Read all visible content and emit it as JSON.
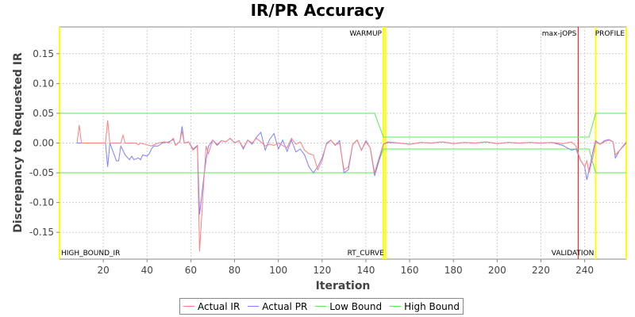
{
  "chart_data": {
    "type": "line",
    "title": "IR/PR Accuracy",
    "xlabel": "Iteration",
    "ylabel": "Discrepancy to Requested IR",
    "xlim": [
      0,
      259
    ],
    "ylim": [
      -0.195,
      0.195
    ],
    "xticks": [
      20,
      40,
      60,
      80,
      100,
      120,
      140,
      160,
      180,
      200,
      220,
      240
    ],
    "yticks": [
      -0.15,
      -0.1,
      -0.05,
      0.0,
      0.05,
      0.1,
      0.15
    ],
    "grid": true,
    "legend_position": "bottom",
    "background": "#ffffff",
    "series": [
      {
        "name": "Actual IR",
        "color": "#ff7f7f",
        "points": [
          [
            8,
            0.0
          ],
          [
            9,
            0.03
          ],
          [
            10,
            0.0
          ],
          [
            21,
            0.0
          ],
          [
            22,
            0.038
          ],
          [
            23,
            0.0
          ],
          [
            28,
            0.0
          ],
          [
            29,
            0.013
          ],
          [
            30,
            0.0
          ],
          [
            35,
            0.0
          ],
          [
            36,
            -0.003
          ],
          [
            37,
            0.0
          ],
          [
            40,
            -0.003
          ],
          [
            42,
            -0.005
          ],
          [
            45,
            0.0
          ],
          [
            48,
            0.002
          ],
          [
            50,
            0.0
          ],
          [
            52,
            0.008
          ],
          [
            53,
            -0.004
          ],
          [
            55,
            0.003
          ],
          [
            56,
            0.02
          ],
          [
            57,
            0.0
          ],
          [
            59,
            0.002
          ],
          [
            61,
            -0.012
          ],
          [
            63,
            -0.005
          ],
          [
            64,
            -0.182
          ],
          [
            66,
            -0.06
          ],
          [
            67,
            -0.005
          ],
          [
            68,
            -0.018
          ],
          [
            70,
            0.005
          ],
          [
            72,
            -0.002
          ],
          [
            74,
            0.004
          ],
          [
            76,
            0.002
          ],
          [
            78,
            0.008
          ],
          [
            80,
            0.0
          ],
          [
            82,
            0.004
          ],
          [
            84,
            -0.008
          ],
          [
            86,
            0.005
          ],
          [
            88,
            0.0
          ],
          [
            90,
            0.008
          ],
          [
            92,
            0.002
          ],
          [
            94,
            -0.005
          ],
          [
            96,
            -0.002
          ],
          [
            98,
            -0.004
          ],
          [
            100,
            0.0
          ],
          [
            102,
            -0.004
          ],
          [
            104,
            -0.008
          ],
          [
            106,
            0.008
          ],
          [
            108,
            -0.002
          ],
          [
            110,
            0.002
          ],
          [
            112,
            -0.012
          ],
          [
            114,
            -0.018
          ],
          [
            116,
            -0.02
          ],
          [
            118,
            -0.045
          ],
          [
            120,
            -0.03
          ],
          [
            122,
            0.0
          ],
          [
            124,
            0.005
          ],
          [
            126,
            -0.003
          ],
          [
            128,
            0.0
          ],
          [
            130,
            -0.045
          ],
          [
            132,
            -0.04
          ],
          [
            134,
            -0.002
          ],
          [
            136,
            0.005
          ],
          [
            138,
            -0.012
          ],
          [
            140,
            0.002
          ],
          [
            142,
            -0.008
          ],
          [
            144,
            -0.05
          ],
          [
            146,
            -0.025
          ],
          [
            148,
            -0.002
          ],
          [
            150,
            0.002
          ],
          [
            155,
            0.0
          ],
          [
            160,
            -0.002
          ],
          [
            165,
            0.001
          ],
          [
            170,
            0.0
          ],
          [
            175,
            0.002
          ],
          [
            180,
            -0.001
          ],
          [
            185,
            0.001
          ],
          [
            190,
            0.0
          ],
          [
            195,
            0.002
          ],
          [
            200,
            -0.001
          ],
          [
            205,
            0.001
          ],
          [
            210,
            0.0
          ],
          [
            215,
            0.001
          ],
          [
            220,
            0.0
          ],
          [
            225,
            0.001
          ],
          [
            230,
            -0.001
          ],
          [
            234,
            0.002
          ],
          [
            236,
            -0.005
          ],
          [
            238,
            -0.028
          ],
          [
            240,
            -0.04
          ],
          [
            241,
            -0.03
          ],
          [
            242,
            -0.05
          ],
          [
            244,
            -0.02
          ],
          [
            245,
            0.002
          ],
          [
            247,
            -0.002
          ],
          [
            249,
            0.002
          ],
          [
            251,
            0.005
          ],
          [
            253,
            0.002
          ],
          [
            254,
            -0.02
          ],
          [
            256,
            -0.012
          ],
          [
            259,
            0.002
          ]
        ]
      },
      {
        "name": "Actual PR",
        "color": "#7f7fff",
        "points": [
          [
            8,
            0.0
          ],
          [
            21,
            0.0
          ],
          [
            22,
            -0.04
          ],
          [
            23,
            0.0
          ],
          [
            25,
            -0.02
          ],
          [
            26,
            -0.03
          ],
          [
            27,
            -0.03
          ],
          [
            28,
            -0.005
          ],
          [
            30,
            -0.02
          ],
          [
            32,
            -0.028
          ],
          [
            33,
            -0.022
          ],
          [
            34,
            -0.028
          ],
          [
            36,
            -0.025
          ],
          [
            37,
            -0.028
          ],
          [
            38,
            -0.02
          ],
          [
            40,
            -0.022
          ],
          [
            41,
            -0.018
          ],
          [
            42,
            -0.01
          ],
          [
            43,
            -0.005
          ],
          [
            45,
            -0.005
          ],
          [
            47,
            0.0
          ],
          [
            50,
            0.002
          ],
          [
            52,
            0.006
          ],
          [
            53,
            -0.003
          ],
          [
            55,
            0.002
          ],
          [
            56,
            0.028
          ],
          [
            57,
            0.0
          ],
          [
            59,
            0.002
          ],
          [
            61,
            -0.01
          ],
          [
            63,
            -0.004
          ],
          [
            64,
            -0.12
          ],
          [
            66,
            -0.055
          ],
          [
            67,
            -0.028
          ],
          [
            68,
            -0.006
          ],
          [
            70,
            0.005
          ],
          [
            72,
            -0.004
          ],
          [
            74,
            0.004
          ],
          [
            76,
            0.002
          ],
          [
            78,
            0.008
          ],
          [
            80,
            0.0
          ],
          [
            82,
            0.004
          ],
          [
            84,
            -0.01
          ],
          [
            86,
            0.005
          ],
          [
            88,
            -0.002
          ],
          [
            90,
            0.01
          ],
          [
            92,
            0.018
          ],
          [
            94,
            -0.012
          ],
          [
            96,
            0.006
          ],
          [
            98,
            0.016
          ],
          [
            100,
            -0.01
          ],
          [
            102,
            0.005
          ],
          [
            104,
            -0.014
          ],
          [
            106,
            0.005
          ],
          [
            108,
            -0.015
          ],
          [
            110,
            -0.01
          ],
          [
            112,
            -0.02
          ],
          [
            114,
            -0.04
          ],
          [
            116,
            -0.05
          ],
          [
            118,
            -0.04
          ],
          [
            120,
            -0.025
          ],
          [
            122,
            -0.002
          ],
          [
            124,
            0.005
          ],
          [
            126,
            -0.004
          ],
          [
            128,
            0.004
          ],
          [
            130,
            -0.05
          ],
          [
            132,
            -0.045
          ],
          [
            134,
            -0.002
          ],
          [
            136,
            0.005
          ],
          [
            138,
            -0.012
          ],
          [
            140,
            0.004
          ],
          [
            142,
            -0.008
          ],
          [
            144,
            -0.055
          ],
          [
            146,
            -0.03
          ],
          [
            148,
            -0.002
          ],
          [
            150,
            0.001
          ],
          [
            155,
            0.0
          ],
          [
            160,
            -0.002
          ],
          [
            165,
            0.001
          ],
          [
            170,
            0.0
          ],
          [
            175,
            0.002
          ],
          [
            180,
            -0.001
          ],
          [
            185,
            0.001
          ],
          [
            190,
            0.0
          ],
          [
            195,
            0.002
          ],
          [
            200,
            -0.001
          ],
          [
            205,
            0.001
          ],
          [
            210,
            0.0
          ],
          [
            215,
            0.001
          ],
          [
            220,
            0.0
          ],
          [
            225,
            0.001
          ],
          [
            230,
            -0.004
          ],
          [
            234,
            -0.012
          ],
          [
            236,
            -0.01
          ],
          [
            238,
            -0.028
          ],
          [
            240,
            -0.04
          ],
          [
            241,
            -0.062
          ],
          [
            242,
            -0.045
          ],
          [
            244,
            -0.01
          ],
          [
            245,
            0.004
          ],
          [
            247,
            -0.002
          ],
          [
            249,
            0.004
          ],
          [
            251,
            0.006
          ],
          [
            253,
            0.002
          ],
          [
            254,
            -0.025
          ],
          [
            256,
            -0.012
          ],
          [
            259,
            0.0
          ]
        ]
      },
      {
        "name": "Low Bound",
        "color": "#55ee55",
        "points": [
          [
            0,
            -0.05
          ],
          [
            144,
            -0.05
          ],
          [
            148,
            -0.01
          ],
          [
            242,
            -0.01
          ],
          [
            245,
            -0.05
          ],
          [
            259,
            -0.05
          ]
        ]
      },
      {
        "name": "High Bound",
        "color": "#55ee55",
        "points": [
          [
            0,
            0.05
          ],
          [
            144,
            0.05
          ],
          [
            148,
            0.01
          ],
          [
            242,
            0.01
          ],
          [
            245,
            0.05
          ],
          [
            259,
            0.05
          ]
        ]
      }
    ],
    "vertical_markers": [
      {
        "label": "HIGH_BOUND_IR",
        "x": 0,
        "color": "#ffff00",
        "label_position": "bottom"
      },
      {
        "label": "WARMUP",
        "x": 148,
        "color": "#ffff00",
        "label_position": "top"
      },
      {
        "label": "RT_CURVE",
        "x": 149,
        "color": "#ffff00",
        "label_position": "bottom"
      },
      {
        "label": "max-jOPS",
        "x": 237,
        "color": "#ff0000",
        "label_position": "top"
      },
      {
        "label": "VALIDATION",
        "x": 245,
        "color": "#ffff00",
        "label_position": "bottom"
      },
      {
        "label": "PROFILE",
        "x": 259,
        "color": "#ffff00",
        "label_position": "top"
      }
    ]
  }
}
